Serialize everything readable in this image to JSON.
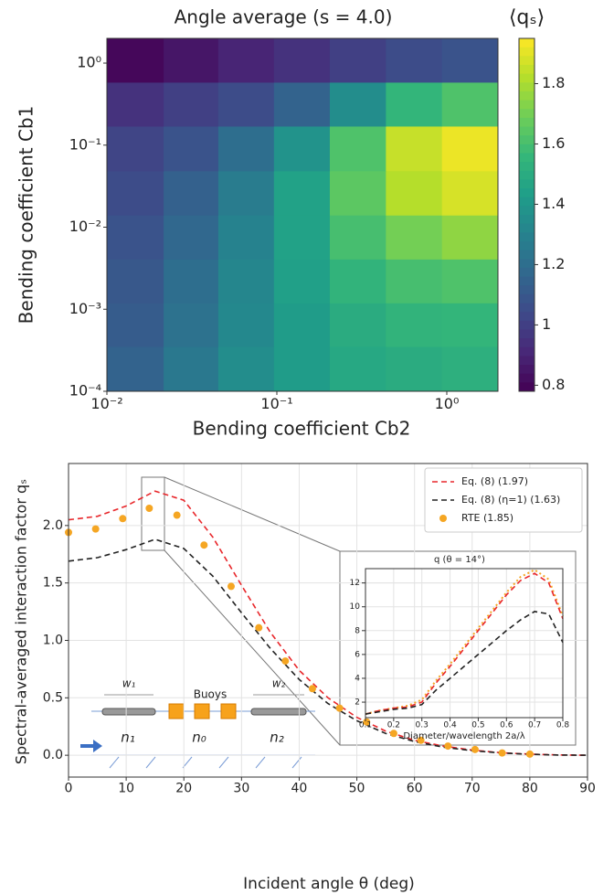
{
  "chart_data": [
    {
      "type": "heatmap",
      "title": "Angle average (s = 4.0)",
      "x_label": "Bending coefficient Cb2",
      "y_label": "Bending coefficient Cb1",
      "colorbar_label": "⟨qₛ⟩",
      "colormap": "viridis",
      "xlog": true,
      "ylog": true,
      "xlim": [
        0.01,
        2
      ],
      "ylim": [
        0.0001,
        2
      ],
      "xticks": [
        {
          "value": 0.01,
          "label": "10⁻²"
        },
        {
          "value": 0.1,
          "label": "10⁻¹"
        },
        {
          "value": 1,
          "label": "10⁰"
        }
      ],
      "yticks": [
        {
          "value": 0.0001,
          "label": "10⁻⁴"
        },
        {
          "value": 0.001,
          "label": "10⁻³"
        },
        {
          "value": 0.01,
          "label": "10⁻²"
        },
        {
          "value": 0.1,
          "label": "10⁻¹"
        },
        {
          "value": 1,
          "label": "10⁰"
        }
      ],
      "x": [
        0.015,
        0.031,
        0.066,
        0.14,
        0.3,
        0.64,
        1.37
      ],
      "y": [
        0.00019,
        0.00065,
        0.0022,
        0.0076,
        0.026,
        0.091,
        0.32,
        1.07
      ],
      "z": [
        [
          1.15,
          1.25,
          1.35,
          1.42,
          1.48,
          1.5,
          1.52
        ],
        [
          1.12,
          1.22,
          1.33,
          1.42,
          1.5,
          1.54,
          1.55
        ],
        [
          1.1,
          1.2,
          1.32,
          1.44,
          1.54,
          1.6,
          1.62
        ],
        [
          1.08,
          1.17,
          1.3,
          1.45,
          1.6,
          1.7,
          1.75
        ],
        [
          1.05,
          1.14,
          1.27,
          1.45,
          1.65,
          1.82,
          1.88
        ],
        [
          1.02,
          1.08,
          1.2,
          1.38,
          1.62,
          1.85,
          1.92
        ],
        [
          0.95,
          1.0,
          1.05,
          1.15,
          1.35,
          1.55,
          1.62
        ],
        [
          0.8,
          0.85,
          0.9,
          0.95,
          1.0,
          1.05,
          1.08
        ]
      ],
      "clim": [
        0.78,
        1.95
      ],
      "cticks": [
        0.8,
        1.0,
        1.2,
        1.4,
        1.6,
        1.8
      ]
    },
    {
      "type": "line",
      "x_label": "Incident angle θ (deg)",
      "y_label": "Spectral-averaged interaction factor qₛ",
      "grid": true,
      "legend": "upper right",
      "xlim": [
        0,
        90
      ],
      "ylim": [
        -0.19,
        2.54
      ],
      "xticks": [
        0,
        10,
        20,
        30,
        40,
        50,
        60,
        70,
        80,
        90
      ],
      "yticks": [
        {
          "value": 0,
          "label": "0.0"
        },
        {
          "value": 0.5,
          "label": "0.5"
        },
        {
          "value": 1,
          "label": "1.0"
        },
        {
          "value": 1.5,
          "label": "1.5"
        },
        {
          "value": 2,
          "label": "2.0"
        }
      ],
      "annotations": [
        "Buoys",
        "w₁",
        "w₂",
        "n₁",
        "n₀",
        "n₂"
      ],
      "series": [
        {
          "name": "Eq. (8) (1.97)",
          "color": "#e8272b",
          "style": "dashed",
          "x": [
            0,
            5,
            10,
            15,
            20,
            25,
            30,
            35,
            40,
            45,
            50,
            55,
            60,
            65,
            70,
            75,
            80,
            85,
            90
          ],
          "values": [
            2.05,
            2.08,
            2.17,
            2.3,
            2.22,
            1.9,
            1.48,
            1.07,
            0.74,
            0.5,
            0.33,
            0.21,
            0.13,
            0.08,
            0.045,
            0.022,
            0.01,
            0.003,
            0
          ]
        },
        {
          "name": "Eq. (8) (η=1) (1.63)",
          "color": "#222222",
          "style": "dashed",
          "x": [
            0,
            5,
            10,
            15,
            20,
            25,
            30,
            35,
            40,
            45,
            50,
            55,
            60,
            65,
            70,
            75,
            80,
            85,
            90
          ],
          "values": [
            1.69,
            1.72,
            1.79,
            1.88,
            1.8,
            1.56,
            1.24,
            0.93,
            0.66,
            0.45,
            0.3,
            0.19,
            0.12,
            0.07,
            0.04,
            0.02,
            0.008,
            0.002,
            0
          ]
        },
        {
          "name": "RTE (1.85)",
          "color": "#f5a623",
          "style": "markers",
          "x": [
            0,
            4.7,
            9.4,
            14,
            18.8,
            23.5,
            28.2,
            33,
            37.6,
            42.3,
            47,
            51.7,
            56.4,
            61.1,
            65.8,
            70.5,
            75.2,
            80
          ],
          "values": [
            1.94,
            1.97,
            2.06,
            2.15,
            2.09,
            1.83,
            1.47,
            1.11,
            0.82,
            0.58,
            0.41,
            0.29,
            0.19,
            0.13,
            0.08,
            0.05,
            0.02,
            0.01
          ]
        }
      ]
    },
    {
      "type": "line",
      "title": "q (θ = 14°)",
      "x_label": "Diameter/wavelength 2a/λ",
      "grid": true,
      "xlim": [
        0.1,
        0.8
      ],
      "ylim": [
        0.7,
        13.2
      ],
      "xticks": [
        0.1,
        0.2,
        0.3,
        0.4,
        0.5,
        0.6,
        0.7,
        0.8
      ],
      "yticks": [
        2,
        4,
        6,
        8,
        10,
        12
      ],
      "series": [
        {
          "color": "#f5a623",
          "style": "dotted",
          "x": [
            0.1,
            0.15,
            0.2,
            0.25,
            0.3,
            0.35,
            0.4,
            0.45,
            0.5,
            0.55,
            0.6,
            0.65,
            0.7,
            0.75,
            0.8
          ],
          "values": [
            1.0,
            1.3,
            1.5,
            1.7,
            2.2,
            3.8,
            5.2,
            6.7,
            8.2,
            9.7,
            11.2,
            12.5,
            13.1,
            12.3,
            9.2
          ]
        },
        {
          "color": "#e8272b",
          "style": "dashed",
          "x": [
            0.1,
            0.15,
            0.2,
            0.25,
            0.3,
            0.35,
            0.4,
            0.45,
            0.5,
            0.55,
            0.6,
            0.65,
            0.7,
            0.75,
            0.8
          ],
          "values": [
            1.0,
            1.3,
            1.5,
            1.6,
            2.0,
            3.6,
            5.0,
            6.5,
            8.0,
            9.5,
            11.0,
            12.2,
            12.8,
            12.0,
            9.0
          ]
        },
        {
          "color": "#222222",
          "style": "dashed",
          "x": [
            0.1,
            0.15,
            0.2,
            0.25,
            0.3,
            0.35,
            0.4,
            0.45,
            0.5,
            0.55,
            0.6,
            0.65,
            0.7,
            0.75,
            0.8
          ],
          "values": [
            1.0,
            1.2,
            1.4,
            1.5,
            1.8,
            3.0,
            4.0,
            5.0,
            6.0,
            7.0,
            8.0,
            8.9,
            9.6,
            9.4,
            7.0
          ]
        }
      ]
    }
  ]
}
